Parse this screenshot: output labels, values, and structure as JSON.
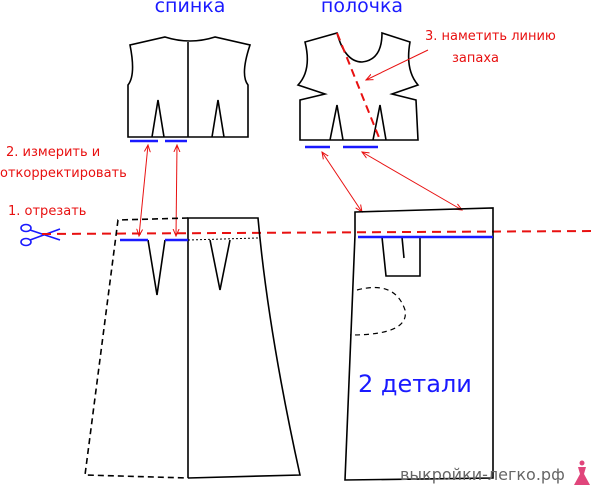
{
  "titles": {
    "back": "спинка",
    "front": "полочка"
  },
  "steps": {
    "step3": [
      "3. наметить линию",
      "запаха"
    ],
    "step2": [
      "2. измерить и",
      "откорректировать"
    ],
    "step1": "1. отрезать"
  },
  "note": "2 детали",
  "watermark": "выкройки-легко.рф"
}
